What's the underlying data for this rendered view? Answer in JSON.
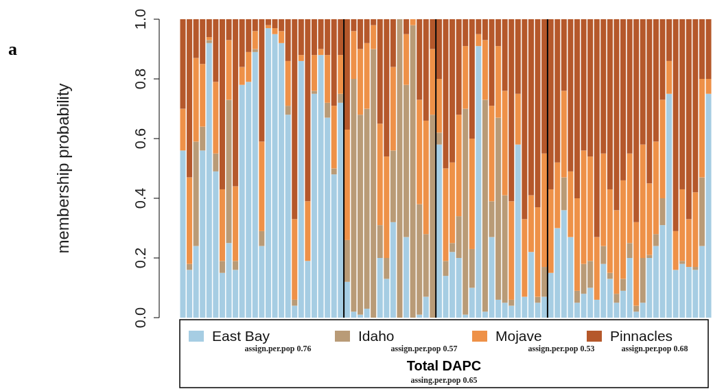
{
  "chart_data": {
    "type": "bar",
    "stacked": true,
    "ylabel": "membership probability",
    "legend": "bottom",
    "legend_title": "Total DAPC",
    "annotations": [
      "a",
      "assign.per.pop 0.76",
      "assign.per.pop 0.57",
      "assign.per.pop 0.53",
      "assign.per.pop 0.68",
      "assing.per.pop 0.65"
    ],
    "categories": [
      null,
      null,
      null,
      null,
      null,
      null,
      null,
      null,
      null,
      null,
      null,
      null,
      null,
      null,
      null,
      null,
      null,
      null,
      null,
      null,
      null,
      null,
      null,
      null,
      null,
      null,
      null,
      null,
      null,
      null,
      null,
      null,
      null,
      null,
      null,
      null,
      null,
      null,
      null,
      null,
      null,
      null,
      null,
      null,
      null,
      null,
      null,
      null,
      null,
      null,
      null,
      null,
      null,
      null,
      null,
      null,
      null,
      null,
      null,
      null,
      null,
      null,
      null,
      null,
      null,
      null,
      null,
      null,
      null,
      null,
      null,
      null,
      null,
      null,
      null,
      null,
      null,
      null,
      null,
      null,
      null
    ],
    "ylim": [
      0,
      1
    ],
    "yticks": [
      {
        "value": 0,
        "label": "0.0"
      },
      0.2,
      0.4,
      0.6,
      0.8,
      {
        "value": 1,
        "label": "1.0"
      }
    ],
    "series": [
      {
        "name": "East Bay",
        "color": "#a6cde3",
        "values": [
          0.56,
          0.16,
          0.24,
          0.56,
          0.92,
          0.49,
          0.15,
          0.25,
          0.16,
          0.78,
          0.79,
          0.89,
          0.24,
          0.97,
          0.95,
          0.92,
          0.68,
          0.04,
          0.86,
          0.19,
          0.75,
          0.88,
          0.67,
          0.48,
          0.72,
          0.12,
          0.02,
          0.01,
          0.03,
          0,
          0.2,
          0.13,
          0.32,
          0,
          0.27,
          0,
          0.01,
          0.07,
          0,
          0.58,
          0.14,
          0.22,
          0.2,
          0.01,
          0.1,
          0.91,
          0.02,
          0.27,
          0.06,
          0.05,
          0.04,
          0.58,
          0.07,
          0.22,
          0.05,
          0.07,
          0.15,
          0.3,
          0.36,
          0.27,
          0.05,
          0.08,
          0.1,
          0.06,
          0.18,
          0.13,
          0.05,
          0.09,
          0.2,
          0.02,
          0.05,
          0.2,
          0.24,
          0.31,
          0.75,
          0.16,
          0.18,
          0.17,
          0.16,
          0.24,
          0.75
        ]
      },
      {
        "name": "Idaho",
        "color": "#b99b77",
        "values": [
          0,
          0.02,
          0.35,
          0.08,
          0.01,
          0.06,
          0.04,
          0.48,
          0.03,
          0,
          0,
          0.01,
          0.05,
          0,
          0,
          0,
          0.03,
          0.02,
          0,
          0,
          0.01,
          0,
          0.05,
          0.02,
          0.03,
          0.14,
          0.78,
          0.67,
          0.67,
          0.9,
          0.11,
          0.07,
          0.24,
          1,
          0.51,
          0.98,
          0.37,
          0.21,
          0.68,
          0.04,
          0.05,
          0.03,
          0.14,
          0.69,
          0.13,
          0,
          0.71,
          0.12,
          0.61,
          0.36,
          0.02,
          0,
          0,
          0,
          0.02,
          0.1,
          0,
          0,
          0.11,
          0,
          0.04,
          0.1,
          0.09,
          0,
          0.06,
          0.02,
          0.03,
          0.04,
          0.05,
          0.02,
          0.15,
          0.01,
          0.04,
          0.09,
          0,
          0,
          0.01,
          0,
          0.01,
          0.23,
          0
        ]
      },
      {
        "name": "Mojave",
        "color": "#ee9148",
        "values": [
          0.14,
          0.29,
          0.28,
          0.21,
          0.01,
          0.24,
          0.24,
          0.2,
          0.25,
          0.06,
          0.1,
          0.06,
          0.3,
          0.01,
          0.02,
          0.04,
          0.15,
          0.27,
          0.02,
          0.2,
          0.12,
          0.02,
          0.16,
          0.21,
          0.13,
          0.37,
          0.16,
          0.22,
          0.22,
          0.08,
          0.34,
          0.34,
          0.28,
          0,
          0.17,
          0.02,
          0.35,
          0.38,
          0.22,
          0.18,
          0.31,
          0.27,
          0.34,
          0.21,
          0.37,
          0.04,
          0.2,
          0.32,
          0.24,
          0.35,
          0.33,
          0.17,
          0.26,
          0.19,
          0.3,
          0.38,
          0.28,
          0.22,
          0.29,
          0.22,
          0.31,
          0.38,
          0.35,
          0.21,
          0.31,
          0.28,
          0.28,
          0.33,
          0.3,
          0.28,
          0.38,
          0.24,
          0.31,
          0.33,
          0.11,
          0.13,
          0.24,
          0.16,
          0.25,
          0.33,
          0.05
        ]
      },
      {
        "name": "Pinnacles",
        "color": "#b5582b",
        "values": [
          0.3,
          0.53,
          0.13,
          0.15,
          0.06,
          0.21,
          0.57,
          0.07,
          0.56,
          0.16,
          0.11,
          0.04,
          0.41,
          0.02,
          0.03,
          0.04,
          0.14,
          0.67,
          0.12,
          0.61,
          0.12,
          0.1,
          0.12,
          0.29,
          0.12,
          0.37,
          0.04,
          0.1,
          0.08,
          0.02,
          0.35,
          0.46,
          0.16,
          0,
          0.05,
          0,
          0.27,
          0.34,
          0.1,
          0.2,
          0.5,
          0.48,
          0.32,
          0.09,
          0.4,
          0.05,
          0.07,
          0.29,
          0.09,
          0.24,
          0.61,
          0.25,
          0.67,
          0.59,
          0.63,
          0.45,
          0.57,
          0.48,
          0.24,
          0.51,
          0.6,
          0.44,
          0.46,
          0.73,
          0.45,
          0.57,
          0.64,
          0.54,
          0.45,
          0.68,
          0.42,
          0.55,
          0.41,
          0.27,
          0.14,
          0.71,
          0.57,
          0.67,
          0.58,
          0.2,
          0.2
        ]
      }
    ]
  }
}
